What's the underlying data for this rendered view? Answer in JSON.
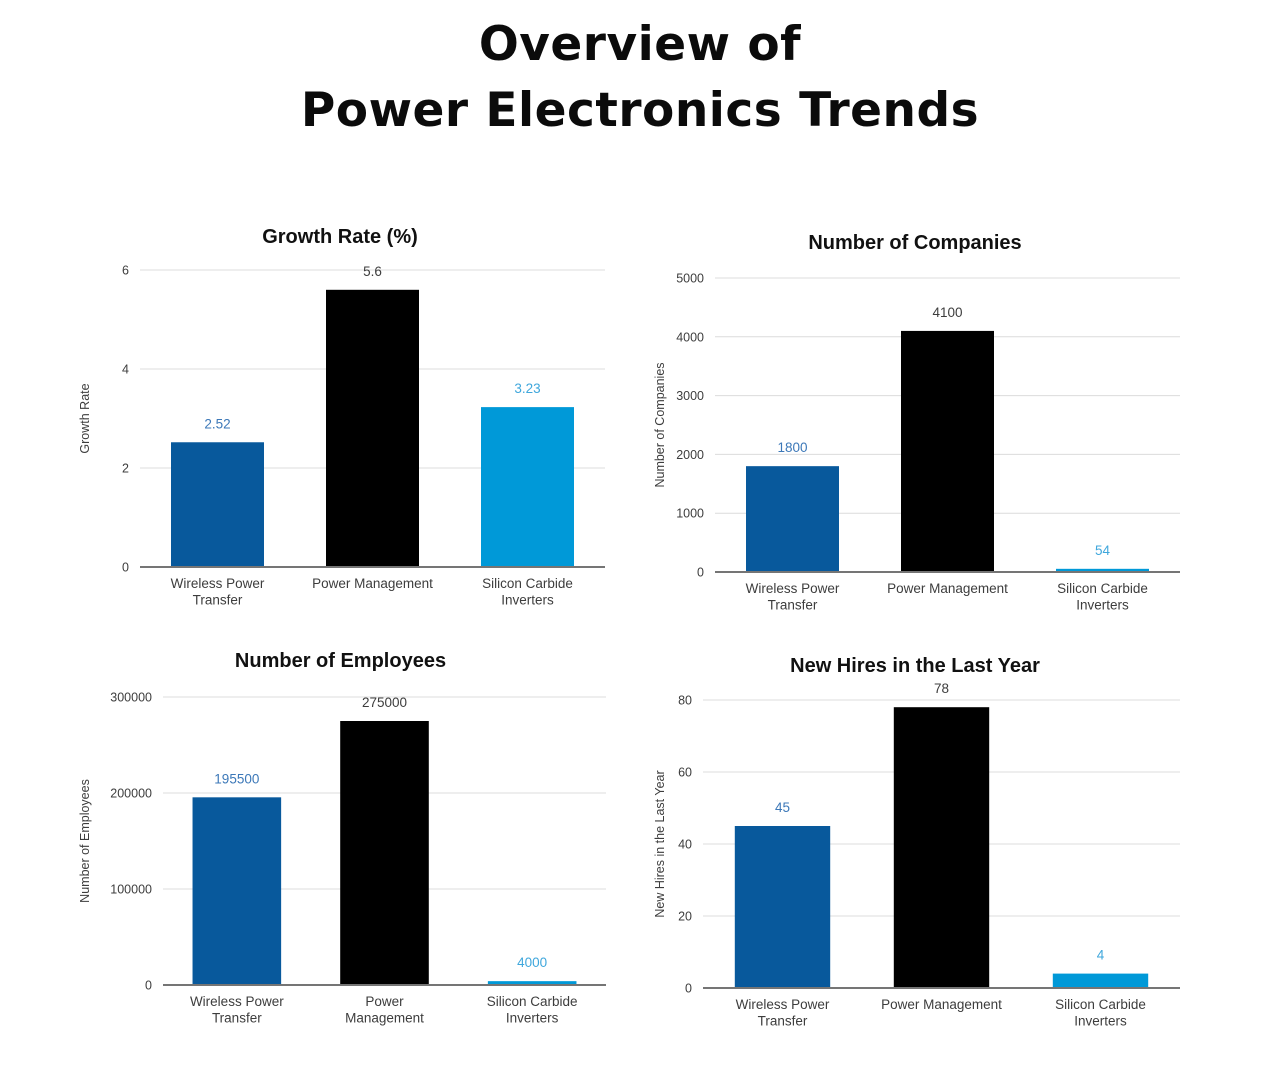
{
  "page": {
    "title_line1": "Overview of",
    "title_line2": "Power Electronics Trends"
  },
  "colors": {
    "bar_colors": [
      "#08599c",
      "#000000",
      "#0099d8"
    ],
    "value_label_colors": [
      "#3c78b8",
      "#3d3d3d",
      "#3fa7dc"
    ],
    "gridline": "#dcdcdc",
    "axis_line": "#757575",
    "tick_text": "#3d3d3d",
    "category_text": "#3d3d3d",
    "title_text": "#111111",
    "background": "#ffffff"
  },
  "chart_data": [
    {
      "type": "bar",
      "title": "Growth Rate (%)",
      "xlabel": "",
      "ylabel": "Growth Rate",
      "categories": [
        [
          "Wireless Power",
          "Transfer"
        ],
        [
          "Power Management"
        ],
        [
          "Silicon Carbide",
          "Inverters"
        ]
      ],
      "values": [
        2.52,
        5.6,
        3.23
      ],
      "ylim": [
        0,
        6
      ],
      "yticks": [
        0,
        2,
        4,
        6
      ],
      "grid": true,
      "legend_position": "none"
    },
    {
      "type": "bar",
      "title": "Number of Companies",
      "xlabel": "",
      "ylabel": "Number of Companies",
      "categories": [
        [
          "Wireless Power",
          "Transfer"
        ],
        [
          "Power Management"
        ],
        [
          "Silicon Carbide",
          "Inverters"
        ]
      ],
      "values": [
        1800,
        4100,
        54
      ],
      "ylim": [
        0,
        5000
      ],
      "yticks": [
        0,
        1000,
        2000,
        3000,
        4000,
        5000
      ],
      "grid": true,
      "legend_position": "none"
    },
    {
      "type": "bar",
      "title": "Number of Employees",
      "xlabel": "",
      "ylabel": "Number of Employees",
      "categories": [
        [
          "Wireless Power",
          "Transfer"
        ],
        [
          "Power",
          "Management"
        ],
        [
          "Silicon Carbide",
          "Inverters"
        ]
      ],
      "values": [
        195500,
        275000,
        4000
      ],
      "ylim": [
        0,
        300000
      ],
      "yticks": [
        0,
        100000,
        200000,
        300000
      ],
      "grid": true,
      "legend_position": "none"
    },
    {
      "type": "bar",
      "title": "New Hires in the Last Year",
      "xlabel": "",
      "ylabel": "New Hires in the Last Year",
      "categories": [
        [
          "Wireless Power",
          "Transfer"
        ],
        [
          "Power Management"
        ],
        [
          "Silicon Carbide",
          "Inverters"
        ]
      ],
      "values": [
        45,
        78,
        4
      ],
      "ylim": [
        0,
        80
      ],
      "yticks": [
        0,
        20,
        40,
        60,
        80
      ],
      "grid": true,
      "legend_position": "none"
    }
  ]
}
